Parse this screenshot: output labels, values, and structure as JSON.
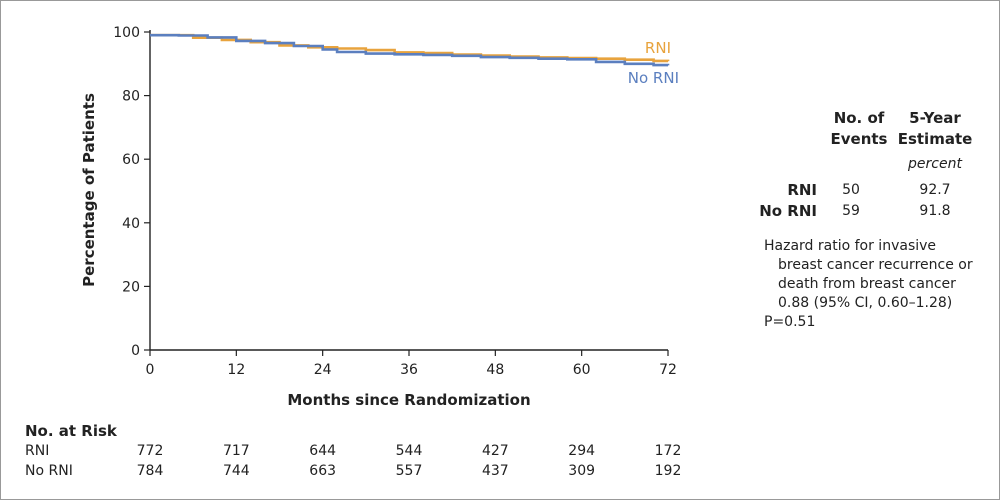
{
  "chart_data": {
    "type": "line",
    "title": "",
    "xlabel": "Months since Randomization",
    "ylabel": "Percentage of Patients",
    "xlim": [
      0,
      72
    ],
    "ylim": [
      0,
      100
    ],
    "xticks": [
      0,
      12,
      24,
      36,
      48,
      60,
      72
    ],
    "yticks": [
      0,
      20,
      40,
      60,
      80,
      100
    ],
    "grid": false,
    "series": [
      {
        "name": "RNI",
        "color": "#E8A33D",
        "x": [
          0,
          4,
          6,
          10,
          14,
          18,
          22,
          26,
          30,
          34,
          38,
          42,
          46,
          50,
          54,
          58,
          62,
          66,
          70,
          72
        ],
        "y": [
          99,
          99,
          98.2,
          97.5,
          96.8,
          95.8,
          95.2,
          94.8,
          94.3,
          93.6,
          93.4,
          92.9,
          92.6,
          92.3,
          92,
          91.8,
          91.6,
          91.3,
          90.9,
          90.8
        ]
      },
      {
        "name": "No RNI",
        "color": "#5B7FBF",
        "x": [
          0,
          4,
          8,
          12,
          16,
          20,
          24,
          26,
          30,
          34,
          38,
          42,
          46,
          50,
          54,
          58,
          62,
          66,
          70,
          72
        ],
        "y": [
          99,
          98.9,
          98.3,
          97.2,
          96.5,
          95.6,
          94.5,
          93.7,
          93.2,
          93,
          92.8,
          92.5,
          92.1,
          91.9,
          91.6,
          91.4,
          90.6,
          90,
          89.6,
          89.5
        ]
      }
    ]
  },
  "risk_table": {
    "title": "No. at Risk",
    "rows": [
      {
        "label": "RNI",
        "values": [
          "772",
          "717",
          "644",
          "544",
          "427",
          "294",
          "172"
        ]
      },
      {
        "label": "No RNI",
        "values": [
          "784",
          "744",
          "663",
          "557",
          "437",
          "309",
          "192"
        ]
      }
    ]
  },
  "events_table": {
    "col1_header_line1": "No. of",
    "col1_header_line2": "Events",
    "col2_header_line1": "5-Year",
    "col2_header_line2": "Estimate",
    "unit": "percent",
    "rows": [
      {
        "label": "RNI",
        "events": "50",
        "estimate": "92.7"
      },
      {
        "label": "No RNI",
        "events": "59",
        "estimate": "91.8"
      }
    ]
  },
  "hazard_note": {
    "line1": "Hazard ratio for invasive",
    "line2": "breast cancer recurrence or",
    "line3": "death from breast cancer",
    "line4": "0.88 (95% CI, 0.60–1.28)",
    "line5": "P=0.51"
  }
}
